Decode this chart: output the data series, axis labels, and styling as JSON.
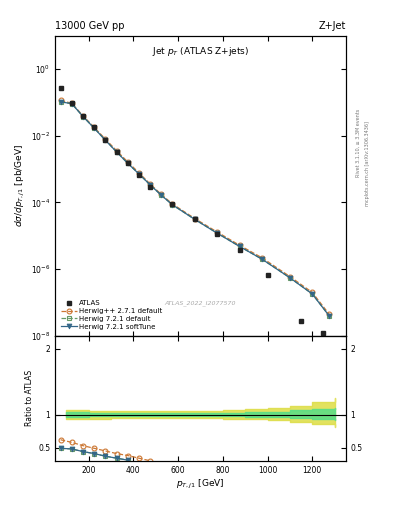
{
  "atlas_x": [
    75,
    125,
    175,
    225,
    275,
    325,
    375,
    425,
    475,
    575,
    675,
    775,
    875,
    1000,
    1150,
    1250
  ],
  "atlas_y": [
    0.28,
    0.1,
    0.04,
    0.018,
    0.0075,
    0.0033,
    0.0015,
    0.00068,
    0.0003,
    9e-05,
    3.2e-05,
    1.1e-05,
    3.8e-06,
    6.5e-07,
    2.8e-08,
    1.2e-08
  ],
  "hpp_x": [
    75,
    125,
    175,
    225,
    275,
    325,
    375,
    425,
    475,
    525,
    575,
    675,
    775,
    875,
    975,
    1100,
    1200,
    1275
  ],
  "hpp_y": [
    0.115,
    0.095,
    0.04,
    0.018,
    0.008,
    0.0036,
    0.00165,
    0.00078,
    0.00036,
    0.000175,
    9e-05,
    3.3e-05,
    1.3e-05,
    5.2e-06,
    2.2e-06,
    6e-07,
    2e-07,
    4.5e-08
  ],
  "h721d_x": [
    75,
    125,
    175,
    225,
    275,
    325,
    375,
    425,
    475,
    525,
    575,
    675,
    775,
    875,
    975,
    1100,
    1200,
    1275
  ],
  "h721d_y": [
    0.105,
    0.092,
    0.038,
    0.017,
    0.0074,
    0.0033,
    0.0015,
    0.00072,
    0.00034,
    0.000165,
    8.5e-05,
    3.1e-05,
    1.2e-05,
    4.8e-06,
    2e-06,
    5.5e-07,
    1.8e-07,
    4e-08
  ],
  "h721s_x": [
    75,
    125,
    175,
    225,
    275,
    325,
    375,
    425,
    475,
    525,
    575,
    675,
    775,
    875,
    975,
    1100,
    1200,
    1275
  ],
  "h721s_y": [
    0.105,
    0.092,
    0.038,
    0.017,
    0.0074,
    0.0033,
    0.0015,
    0.00072,
    0.00034,
    0.000165,
    8.5e-05,
    3.1e-05,
    1.2e-05,
    4.8e-06,
    2e-06,
    5.5e-07,
    1.8e-07,
    4e-08
  ],
  "ratio_hpp_x": [
    75,
    125,
    175,
    225,
    275,
    325,
    375,
    425,
    475
  ],
  "ratio_hpp_y": [
    0.62,
    0.58,
    0.53,
    0.49,
    0.45,
    0.41,
    0.38,
    0.34,
    0.3
  ],
  "ratio_h721d_x": [
    75,
    125,
    175,
    225,
    275,
    325,
    375
  ],
  "ratio_h721d_y": [
    0.49,
    0.48,
    0.44,
    0.41,
    0.37,
    0.34,
    0.31
  ],
  "ratio_h721s_x": [
    75,
    125,
    175,
    225,
    275,
    325,
    375
  ],
  "ratio_h721s_y": [
    0.49,
    0.48,
    0.44,
    0.41,
    0.37,
    0.34,
    0.31
  ],
  "band_green_x": [
    100,
    200,
    300,
    400,
    500,
    600,
    700,
    800,
    900,
    1000,
    1100,
    1200,
    1300
  ],
  "band_green_y_lo": [
    0.965,
    0.975,
    0.978,
    0.98,
    0.98,
    0.98,
    0.978,
    0.975,
    0.972,
    0.968,
    0.955,
    0.94,
    0.92
  ],
  "band_green_y_hi": [
    1.035,
    1.025,
    1.022,
    1.02,
    1.02,
    1.022,
    1.025,
    1.03,
    1.038,
    1.048,
    1.065,
    1.082,
    1.1
  ],
  "band_yellow_x": [
    100,
    200,
    300,
    400,
    500,
    600,
    700,
    800,
    900,
    1000,
    1100,
    1200,
    1300
  ],
  "band_yellow_y_lo": [
    0.93,
    0.94,
    0.945,
    0.948,
    0.948,
    0.948,
    0.945,
    0.94,
    0.932,
    0.92,
    0.89,
    0.855,
    0.81
  ],
  "band_yellow_y_hi": [
    1.07,
    1.06,
    1.055,
    1.052,
    1.052,
    1.055,
    1.06,
    1.068,
    1.08,
    1.1,
    1.14,
    1.19,
    1.26
  ],
  "color_atlas": "#222222",
  "color_hpp": "#cc7733",
  "color_h721d": "#669966",
  "color_h721s": "#336688",
  "color_green_band": "#55dd88",
  "color_yellow_band": "#dddd44",
  "ylim_main": [
    1e-08,
    10
  ],
  "ylim_ratio": [
    0.3,
    2.2
  ],
  "xlim": [
    50,
    1350
  ],
  "title_left": "13000 GeV pp",
  "title_right": "Z+Jet",
  "plot_title": "Jet $p_T$ (ATLAS Z+jets)",
  "ylabel_main": "$d\\sigma/dp_{T,j1}$ [pb/GeV]",
  "ylabel_ratio": "Ratio to ATLAS",
  "xlabel": "$p_{T,j1}$ [GeV]",
  "watermark": "ATLAS_2022_I2077570",
  "label_rivet": "Rivet 3.1.10, ≥ 3.3M events",
  "label_mcplots": "mcplots.cern.ch [arXiv:1306.3436]"
}
